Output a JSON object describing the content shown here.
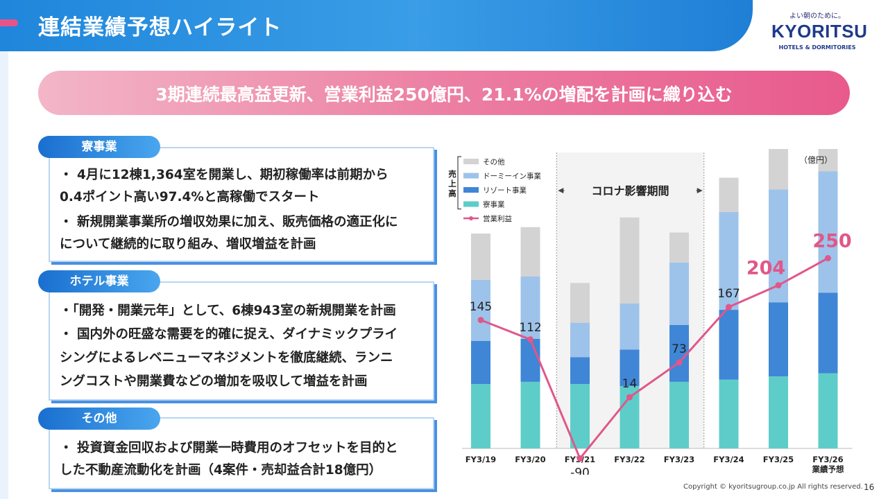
{
  "page": {
    "title": "連結業績予想ハイライト",
    "headline": "3期連続最高益更新、営業利益250億円、21.1%の増配を計画に織り込む",
    "page_number": "16",
    "copyright": "Copyright © kyoritsugroup.co.jp All rights reserved."
  },
  "logo": {
    "tagline": "よい朝のために。",
    "word": "KYORITSU",
    "sub": "HOTELS & DORMITORIES"
  },
  "sections": [
    {
      "tab": "寮事業",
      "bullets": [
        "・ 4月に12棟1,364室を開業し、期初稼働率は前期から",
        "   0.4ポイント高い97.4%と高稼働でスタート",
        "・ 新規開業事業所の増収効果に加え、販売価格の適正化に",
        "   について継続的に取り組み、増収増益を計画"
      ]
    },
    {
      "tab": "ホテル事業",
      "bullets": [
        "・「開発・開業元年」として、6棟943室の新規開業を計画",
        "・ 国内外の旺盛な需要を的確に捉え、ダイナミックプライ",
        "   シングによるレベニューマネジメントを徹底継続、ランニ",
        "   ングコストや開業費などの増加を吸収して増益を計画"
      ]
    },
    {
      "tab": "その他",
      "bullets": [
        "・ 投資資金回収および開業一時費用のオフセットを目的と",
        "   した不動産流動化を計画（4案件・売却益合計18億円）"
      ]
    }
  ],
  "chart_data": {
    "type": "bar",
    "unit": "（億円）",
    "legend_group_label": "売上高",
    "shaded_label": "コロナ影響期間",
    "shaded_range": [
      "FY3/21",
      "FY3/23"
    ],
    "categories": [
      "FY3/19",
      "FY3/20",
      "FY3/21",
      "FY3/22",
      "FY3/23",
      "FY3/24",
      "FY3/25",
      "FY3/26"
    ],
    "category_sublabels": [
      "",
      "",
      "",
      "",
      "",
      "",
      "",
      "業績予想"
    ],
    "series": [
      {
        "name": "寮事業",
        "color": "#5ecdc9",
        "values": [
          60,
          62,
          60,
          58,
          62,
          64,
          67,
          70
        ]
      },
      {
        "name": "リゾート事業",
        "color": "#3f86d6",
        "values": [
          40,
          40,
          25,
          34,
          53,
          65,
          69,
          75
        ]
      },
      {
        "name": "ドーミーイン事業",
        "color": "#9dc3ea",
        "values": [
          57,
          58,
          32,
          43,
          58,
          91,
          105,
          113
        ]
      },
      {
        "name": "その他",
        "color": "#d3d3d3",
        "values": [
          43,
          46,
          37,
          80,
          28,
          32,
          44,
          50
        ]
      }
    ],
    "line": {
      "name": "営業利益",
      "color": "#e0578a",
      "values": [
        145,
        112,
        -90,
        14,
        73,
        167,
        204,
        250
      ],
      "labels": [
        "145",
        "112",
        "-90",
        "14",
        "73",
        "167",
        "204",
        "250"
      ],
      "highlight": [
        false,
        false,
        false,
        false,
        false,
        false,
        true,
        true
      ]
    }
  }
}
